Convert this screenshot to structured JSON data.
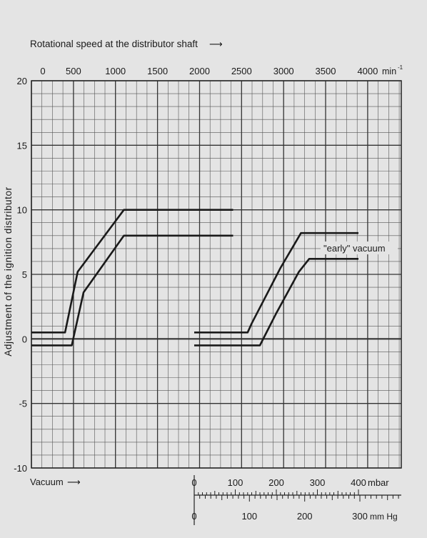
{
  "chart_data": {
    "type": "line",
    "top_axis": {
      "label": "Rotational speed at the distributor shaft",
      "arrow": "arrow-right-icon",
      "unit": "min",
      "unit_exponent": "-1",
      "ticks": [
        "0",
        "500",
        "1000",
        "1500",
        "2000",
        "2500",
        "3000",
        "3500",
        "4000"
      ],
      "range": [
        0,
        4400
      ]
    },
    "y_axis": {
      "label": "Adjustment of the ignition distributor",
      "ticks": [
        "20",
        "15",
        "10",
        "5",
        "0",
        "-5",
        "-10"
      ],
      "range": [
        -10,
        20
      ]
    },
    "vacuum_axis": {
      "label": "Vacuum",
      "arrow": "arrow-right-icon",
      "mbar_unit": "mbar",
      "mbar_ticks": [
        "0",
        "100",
        "200",
        "300",
        "400"
      ],
      "mmhg_unit": "mm Hg",
      "mmhg_ticks": [
        "0",
        "100",
        "200",
        "300"
      ]
    },
    "annotations": [
      "\"early\" vacuum"
    ],
    "grid": true,
    "series": [
      {
        "panel": "speed",
        "x": [
          0,
          400,
          550,
          1100,
          2400
        ],
        "y": [
          0.5,
          0.5,
          5.2,
          10,
          10
        ]
      },
      {
        "panel": "speed",
        "x": [
          0,
          480,
          620,
          1100,
          2400
        ],
        "y": [
          -0.5,
          -0.5,
          3.6,
          8,
          8
        ]
      },
      {
        "panel": "vacuum",
        "x": [
          0,
          130,
          140,
          210,
          260,
          400
        ],
        "y": [
          0.5,
          0.5,
          1.2,
          5.5,
          8.2,
          8.2
        ]
      },
      {
        "panel": "vacuum",
        "x": [
          0,
          160,
          200,
          255,
          280,
          400
        ],
        "y": [
          -0.5,
          -0.5,
          2.0,
          5.2,
          6.2,
          6.2
        ]
      }
    ]
  }
}
